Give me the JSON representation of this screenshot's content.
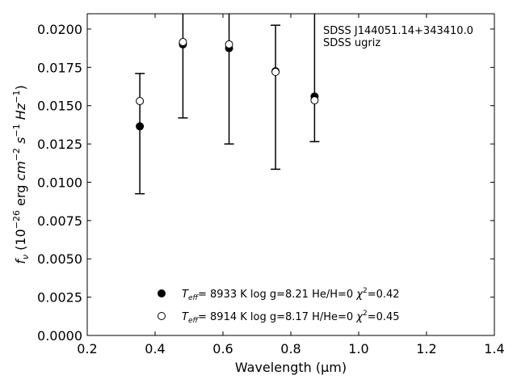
{
  "chart_data": {
    "type": "scatter",
    "annotation": [
      "SDSS J144051.14+343410.0",
      "SDSS ugriz"
    ],
    "xlabel": "Wavelength (μm)",
    "ylabel": "f_ν (10^-26 erg cm^-2 s^-1 Hz^-1)",
    "xlim": [
      0.2,
      1.4
    ],
    "ylim": [
      0.0,
      0.021
    ],
    "xticks": [
      "0.2",
      "0.4",
      "0.6",
      "0.8",
      "1.0",
      "1.2",
      "1.4"
    ],
    "yticks": [
      "0.0000",
      "0.0025",
      "0.0050",
      "0.0075",
      "0.0100",
      "0.0125",
      "0.0150",
      "0.0175",
      "0.0200"
    ],
    "observed": {
      "x": [
        0.355,
        0.482,
        0.618,
        0.755,
        0.87
      ],
      "y": [
        0.01365,
        0.019,
        0.01875,
        0.01725,
        0.0156
      ],
      "err_low": [
        0.00925,
        0.0142,
        0.0125,
        0.01085,
        0.01265
      ],
      "err_high": [
        0.0171,
        0.0211,
        0.0211,
        0.02025,
        0.0211
      ]
    },
    "series": [
      {
        "name": "T_eff=  8933 K  log g=8.21  He/H=0  χ²=0.42",
        "marker": "filled",
        "x": [
          0.355,
          0.482,
          0.618,
          0.755,
          0.87
        ],
        "y": [
          0.01365,
          0.019,
          0.01875,
          0.01725,
          0.0156
        ]
      },
      {
        "name": "T_eff=  8914 K  log g=8.17  H/He=0  χ²=0.45",
        "marker": "open",
        "x": [
          0.355,
          0.482,
          0.618,
          0.755,
          0.87
        ],
        "y": [
          0.0153,
          0.01915,
          0.019,
          0.0172,
          0.01535
        ]
      }
    ],
    "legend_position": "bottom-center"
  }
}
